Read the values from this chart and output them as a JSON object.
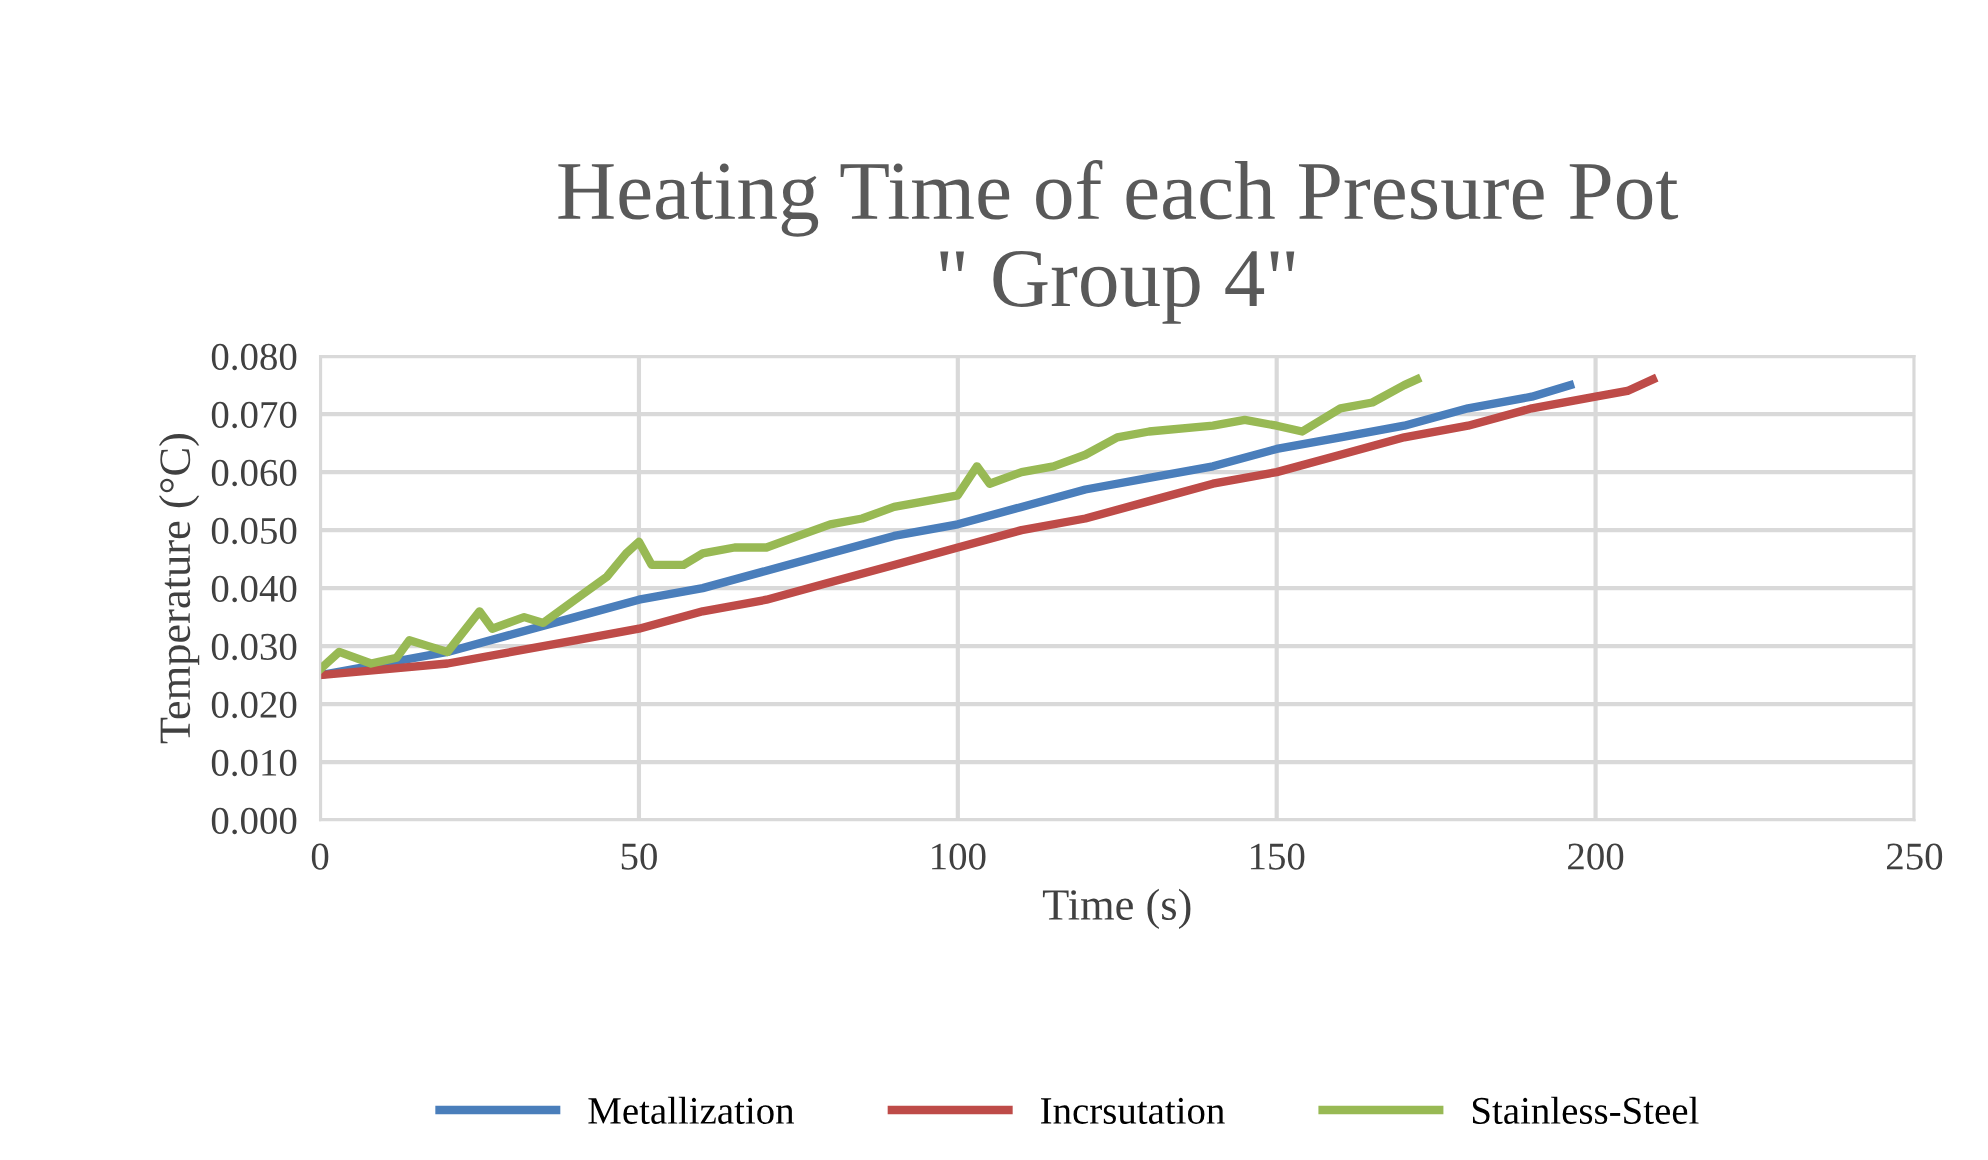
{
  "chart_data": {
    "type": "line",
    "title": "Heating Time of each Presure Pot\n\" Group 4\"",
    "xlabel": "Time (s)",
    "ylabel": "Temperature (°C)",
    "xlim": [
      0,
      250
    ],
    "xticks": [
      0,
      50,
      100,
      150,
      200,
      250
    ],
    "ylim": [
      0,
      0.08
    ],
    "yticks": [
      {
        "value": 0,
        "label": "0.000"
      },
      {
        "value": 0.01,
        "label": "0.010"
      },
      {
        "value": 0.02,
        "label": "0.020"
      },
      {
        "value": 0.03,
        "label": "0.030"
      },
      {
        "value": 0.04,
        "label": "0.040"
      },
      {
        "value": 0.05,
        "label": "0.050"
      },
      {
        "value": 0.06,
        "label": "0.060"
      },
      {
        "value": 0.07,
        "label": "0.070"
      },
      {
        "value": 0.08,
        "label": "0.080"
      }
    ],
    "grid": true,
    "legend": "bottom",
    "marker": "none",
    "line_style": "solid",
    "series": [
      {
        "name": "Metallization",
        "color": "#4a7ebb",
        "x": [
          0,
          10,
          20,
          30,
          40,
          50,
          60,
          70,
          80,
          90,
          100,
          110,
          120,
          130,
          140,
          150,
          160,
          170,
          180,
          190,
          196
        ],
        "values": [
          0.025,
          0.027,
          0.029,
          0.032,
          0.035,
          0.038,
          0.04,
          0.043,
          0.046,
          0.049,
          0.051,
          0.054,
          0.057,
          0.059,
          0.061,
          0.064,
          0.066,
          0.068,
          0.071,
          0.073,
          0.075
        ]
      },
      {
        "name": "Incrsutation",
        "color": "#be4b48",
        "x": [
          0,
          10,
          20,
          30,
          40,
          50,
          60,
          70,
          80,
          90,
          100,
          110,
          120,
          130,
          140,
          150,
          160,
          170,
          180,
          190,
          200,
          205,
          209
        ],
        "values": [
          0.025,
          0.026,
          0.027,
          0.029,
          0.031,
          0.033,
          0.036,
          0.038,
          0.041,
          0.044,
          0.047,
          0.05,
          0.052,
          0.055,
          0.058,
          0.06,
          0.063,
          0.066,
          0.068,
          0.071,
          0.073,
          0.074,
          0.076
        ]
      },
      {
        "name": "Stainless-Steel",
        "color": "#98b954",
        "x": [
          0,
          3,
          8,
          12,
          14,
          17,
          20,
          25,
          27,
          32,
          35,
          40,
          45,
          48,
          50,
          52,
          57,
          60,
          65,
          70,
          75,
          80,
          85,
          90,
          95,
          100,
          103,
          105,
          110,
          115,
          120,
          125,
          130,
          140,
          145,
          150,
          154,
          160,
          165,
          170,
          172
        ],
        "values": [
          0.026,
          0.029,
          0.027,
          0.028,
          0.031,
          0.03,
          0.029,
          0.036,
          0.033,
          0.035,
          0.034,
          0.038,
          0.042,
          0.046,
          0.048,
          0.044,
          0.044,
          0.046,
          0.047,
          0.047,
          0.049,
          0.051,
          0.052,
          0.054,
          0.055,
          0.056,
          0.061,
          0.058,
          0.06,
          0.061,
          0.063,
          0.066,
          0.067,
          0.068,
          0.069,
          0.068,
          0.067,
          0.071,
          0.072,
          0.075,
          0.076
        ]
      }
    ]
  }
}
